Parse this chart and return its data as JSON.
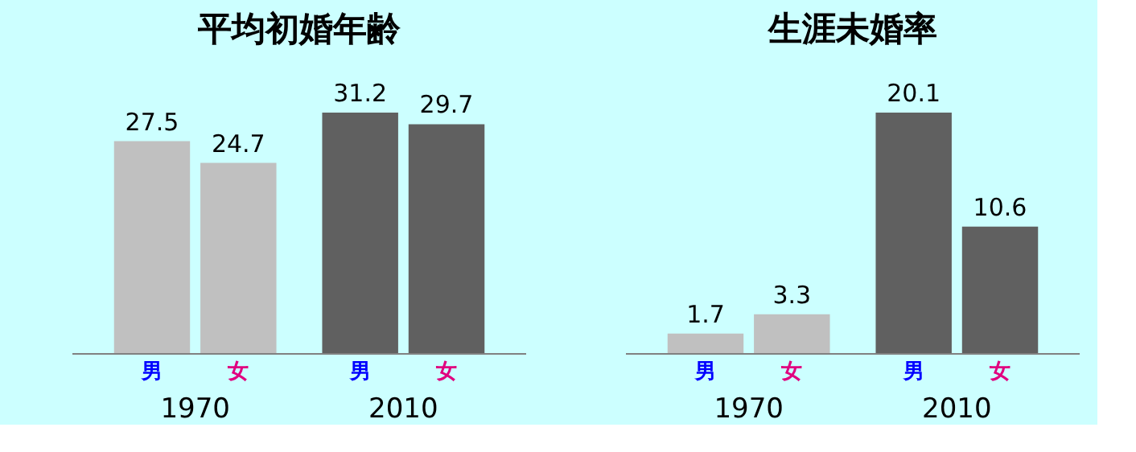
{
  "chart_data": [
    {
      "type": "bar",
      "title": "平均初婚年齢",
      "categories": [
        "1970",
        "2010"
      ],
      "tick_labels": "x",
      "data_labels": true,
      "grid": false,
      "series": [
        {
          "name": "男",
          "colors": [
            "#c0c0c0",
            "#606060"
          ],
          "values": [
            27.5,
            31.2
          ]
        },
        {
          "name": "女",
          "colors": [
            "#c0c0c0",
            "#606060"
          ],
          "values": [
            24.7,
            29.7
          ]
        }
      ]
    },
    {
      "type": "bar",
      "title": "生涯未婚率",
      "categories": [
        "1970",
        "2010"
      ],
      "tick_labels": "x",
      "data_labels": true,
      "grid": false,
      "series": [
        {
          "name": "男",
          "colors": [
            "#c0c0c0",
            "#606060"
          ],
          "values": [
            1.7,
            20.1
          ]
        },
        {
          "name": "女",
          "colors": [
            "#c0c0c0",
            "#606060"
          ],
          "values": [
            3.3,
            10.6
          ]
        }
      ]
    }
  ]
}
